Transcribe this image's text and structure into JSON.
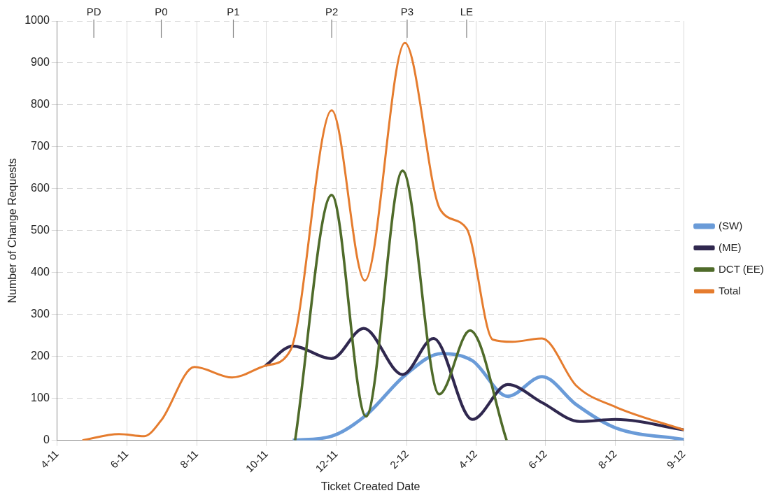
{
  "chart_data": {
    "type": "line",
    "xlabel": "Ticket Created Date",
    "ylabel": "Number of Change Requests",
    "xlim": [
      "2011-04-01",
      "2012-09-30"
    ],
    "xticks": [
      {
        "value": "2011-04-01",
        "label": "4-11"
      },
      {
        "value": "2011-06-01",
        "label": "6-11"
      },
      {
        "value": "2011-08-01",
        "label": "8-11"
      },
      {
        "value": "2011-10-01",
        "label": "10-11"
      },
      {
        "value": "2011-12-01",
        "label": "12-11"
      },
      {
        "value": "2012-02-01",
        "label": "2-12"
      },
      {
        "value": "2012-04-01",
        "label": "4-12"
      },
      {
        "value": "2012-06-01",
        "label": "6-12"
      },
      {
        "value": "2012-08-01",
        "label": "8-12"
      },
      {
        "value": "2012-09-30",
        "label": "9-12"
      }
    ],
    "ylim": [
      0,
      1000
    ],
    "yticks": [
      0,
      100,
      200,
      300,
      400,
      500,
      600,
      700,
      800,
      900,
      1000
    ],
    "grid": true,
    "legend": "right",
    "marker": "none",
    "line_style": "solid",
    "series": [
      {
        "name": "(SW)",
        "color": "#6a9bd8",
        "x": [
          "2011-10-24",
          "2011-11-27",
          "2011-12-27",
          "2012-01-30",
          "2012-03-02",
          "2012-03-29",
          "2012-04-29",
          "2012-05-29",
          "2012-06-28",
          "2012-08-01",
          "2012-09-30"
        ],
        "values": [
          0,
          10,
          60,
          155,
          207,
          190,
          105,
          152,
          85,
          30,
          2
        ]
      },
      {
        "name": "(ME)",
        "color": "#30284f",
        "x": [
          "2011-09-30",
          "2011-10-24",
          "2011-11-27",
          "2011-12-25",
          "2012-01-28",
          "2012-02-24",
          "2012-03-29",
          "2012-04-29",
          "2012-05-29",
          "2012-07-01",
          "2012-08-01",
          "2012-09-30"
        ],
        "values": [
          178,
          225,
          195,
          267,
          157,
          243,
          50,
          133,
          90,
          45,
          50,
          25
        ]
      },
      {
        "name": "DCT (EE)",
        "color": "#4f6b2a",
        "x": [
          "2011-10-26",
          "2011-11-27",
          "2011-12-27",
          "2012-01-28",
          "2012-02-29",
          "2012-03-27",
          "2012-04-28"
        ],
        "values": [
          0,
          585,
          57,
          643,
          110,
          262,
          0
        ]
      },
      {
        "name": "Total",
        "color": "#e57c2e",
        "x": [
          "2011-04-23",
          "2011-05-25",
          "2011-06-16",
          "2011-07-01",
          "2011-07-30",
          "2011-09-01",
          "2011-09-30",
          "2011-10-22",
          "2011-11-27",
          "2011-12-26",
          "2012-01-30",
          "2012-03-01",
          "2012-03-24",
          "2012-04-16",
          "2012-05-03",
          "2012-05-29",
          "2012-06-28",
          "2012-08-01",
          "2012-09-30"
        ],
        "values": [
          0,
          15,
          10,
          48,
          175,
          150,
          178,
          215,
          787,
          381,
          948,
          550,
          505,
          240,
          235,
          243,
          130,
          80,
          25
        ]
      }
    ],
    "ref_lines": [
      {
        "axis": "x",
        "value": "2011-05-03",
        "label": "PD",
        "color": "#808080"
      },
      {
        "axis": "x",
        "value": "2011-07-01",
        "label": "P0",
        "color": "#808080"
      },
      {
        "axis": "x",
        "value": "2011-09-02",
        "label": "P1",
        "color": "#808080"
      },
      {
        "axis": "x",
        "value": "2011-11-27",
        "label": "P2",
        "color": "#808080"
      },
      {
        "axis": "x",
        "value": "2012-02-01",
        "label": "P3",
        "color": "#808080"
      },
      {
        "axis": "x",
        "value": "2012-03-24",
        "label": "LE",
        "color": "#808080"
      }
    ]
  }
}
